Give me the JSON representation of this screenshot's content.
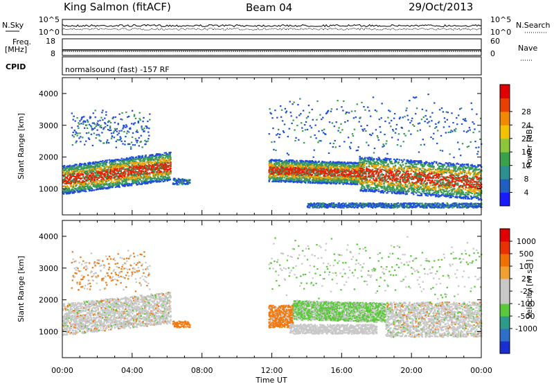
{
  "header": {
    "station": "King Salmon (fitACF)",
    "beam": "Beam 04",
    "date": "29/Oct/2013"
  },
  "noise_panel": {
    "left_label": "N.Sky",
    "right_label": "N.Search",
    "left_ticks": [
      "10^5",
      "10^0"
    ],
    "right_ticks": [
      "10^5",
      "10^0"
    ]
  },
  "freq_panel": {
    "left_label_1": "Freq.",
    "left_label_2": "[MHz]",
    "right_label": "Nave",
    "left_ticks": [
      "18",
      "8"
    ],
    "right_ticks": [
      "60",
      "0"
    ]
  },
  "cpid_panel": {
    "label": "CPID",
    "text": "normalsound (fast) -157 RF"
  },
  "time_axis": {
    "label": "Time UT",
    "ticks": [
      "00:00",
      "04:00",
      "08:00",
      "12:00",
      "16:00",
      "20:00",
      "00:00"
    ]
  },
  "chart_data": [
    {
      "type": "heatmap",
      "name": "power",
      "ylabel": "Slant Range [km]",
      "yticks": [
        1000,
        2000,
        3000,
        4000
      ],
      "ylim": [
        180,
        4500
      ],
      "xlim_hours": [
        0,
        24
      ],
      "colorbar_label": "Power [dB]",
      "colorbar_ticks": [
        "4",
        "8",
        "12",
        "16",
        "20",
        "24",
        "28"
      ],
      "colorbar_colors": [
        "#1a1aff",
        "#1f5fc0",
        "#2d8f8f",
        "#3aa04a",
        "#8cc63a",
        "#f2c200",
        "#f08a00",
        "#e84000",
        "#e00000"
      ],
      "colors": {
        "weak": "#1f4fd8",
        "mid": "#3a9a5a",
        "strong": "#f0a000",
        "peak": "#e82000"
      }
    },
    {
      "type": "heatmap",
      "name": "velocity",
      "ylabel": "Slant Range [km]",
      "yticks": [
        1000,
        2000,
        3000,
        4000
      ],
      "ylim": [
        180,
        4500
      ],
      "xlim_hours": [
        0,
        24
      ],
      "colorbar_label": "Velocity [m s⁻¹]",
      "colorbar_ticks": [
        "1000",
        "500",
        "100",
        "25",
        "-25",
        "-100",
        "-500",
        "-1000"
      ],
      "colorbar_colors": [
        "#1a2fd0",
        "#2e6fc8",
        "#2d9a8a",
        "#5ac83a",
        "#c8c8c8",
        "#c8c8c8",
        "#f0a030",
        "#f07000",
        "#e83000",
        "#e00000"
      ],
      "colors": {
        "ground": "#c8c8c8",
        "toward": "#5ac83a",
        "away": "#f07a10"
      }
    }
  ]
}
